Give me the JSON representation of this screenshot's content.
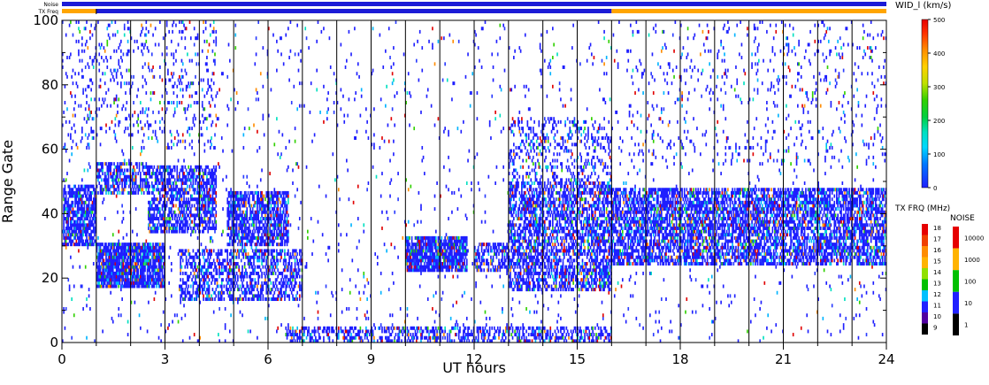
{
  "chart_data": {
    "type": "heatmap",
    "title": "",
    "xlabel": "UT hours",
    "ylabel": "Range Gate",
    "xlim": [
      0,
      24
    ],
    "ylim": [
      0,
      100
    ],
    "x_ticks": [
      "0",
      "3",
      "6",
      "9",
      "12",
      "15",
      "18",
      "21",
      "24"
    ],
    "y_ticks": [
      "0",
      "20",
      "40",
      "60",
      "80",
      "100"
    ],
    "top_strips": {
      "noise_label": "Noise",
      "txfreq_label": "TX Freq",
      "noise_color": "#1b1bd6",
      "txfreq_segments": [
        {
          "start": 0,
          "end": 1,
          "color": "#ffa500"
        },
        {
          "start": 1,
          "end": 16,
          "color": "#1b1bd6"
        },
        {
          "start": 16,
          "end": 24,
          "color": "#ffa500"
        }
      ]
    },
    "scan_boundaries_ut": [
      1,
      2,
      3,
      4,
      5,
      6,
      7,
      8,
      9,
      10,
      11,
      12,
      13,
      14,
      15,
      16,
      17,
      18,
      19,
      20,
      21,
      22,
      23
    ],
    "echo_regions": [
      {
        "x": [
          0.05,
          1.0
        ],
        "y": [
          30,
          49
        ],
        "density": 0.7
      },
      {
        "x": [
          1.0,
          3.0
        ],
        "y": [
          17,
          31
        ],
        "density": 0.85
      },
      {
        "x": [
          1.0,
          2.5
        ],
        "y": [
          46,
          56
        ],
        "density": 0.6
      },
      {
        "x": [
          2.5,
          4.5
        ],
        "y": [
          34,
          55
        ],
        "density": 0.6
      },
      {
        "x": [
          4.8,
          6.6
        ],
        "y": [
          30,
          47
        ],
        "density": 0.7
      },
      {
        "x": [
          3.4,
          7.0
        ],
        "y": [
          13,
          29
        ],
        "density": 0.5
      },
      {
        "x": [
          10.0,
          11.8
        ],
        "y": [
          22,
          33
        ],
        "density": 0.85
      },
      {
        "x": [
          12.0,
          13.0
        ],
        "y": [
          22,
          31
        ],
        "density": 0.55
      },
      {
        "x": [
          13.0,
          16.0
        ],
        "y": [
          16,
          50
        ],
        "density": 0.6
      },
      {
        "x": [
          16.0,
          24.0
        ],
        "y": [
          24,
          48
        ],
        "density": 0.65
      },
      {
        "x": [
          6.5,
          16.0
        ],
        "y": [
          0,
          5
        ],
        "density": 0.45
      },
      {
        "x": [
          0.0,
          4.5
        ],
        "y": [
          60,
          100
        ],
        "density": 0.12
      },
      {
        "x": [
          13.0,
          16.0
        ],
        "y": [
          48,
          70
        ],
        "density": 0.25
      },
      {
        "x": [
          16.5,
          24.0
        ],
        "y": [
          55,
          100
        ],
        "density": 0.07
      }
    ],
    "legend_width": {
      "title": "WID_l (km/s)",
      "ticks": [
        "500",
        "400",
        "300",
        "200",
        "100",
        "0"
      ],
      "range": [
        0,
        500
      ]
    },
    "legend_txfreq": {
      "title": "TX FRQ (MHz)",
      "levels": [
        "18",
        "17",
        "16",
        "15",
        "14",
        "13",
        "12",
        "11",
        "10",
        "9"
      ],
      "colors": [
        "#e60000",
        "#f04000",
        "#ff8c00",
        "#ffb300",
        "#90e000",
        "#00c000",
        "#00c0ff",
        "#2020ff",
        "#5000a0",
        "#000000"
      ]
    },
    "legend_noise": {
      "title": "NOISE",
      "levels": [
        "10000",
        "1000",
        "100",
        "10",
        "1"
      ],
      "colors": [
        "#e60000",
        "#ffb300",
        "#00c000",
        "#2020ff",
        "#000000"
      ]
    }
  }
}
